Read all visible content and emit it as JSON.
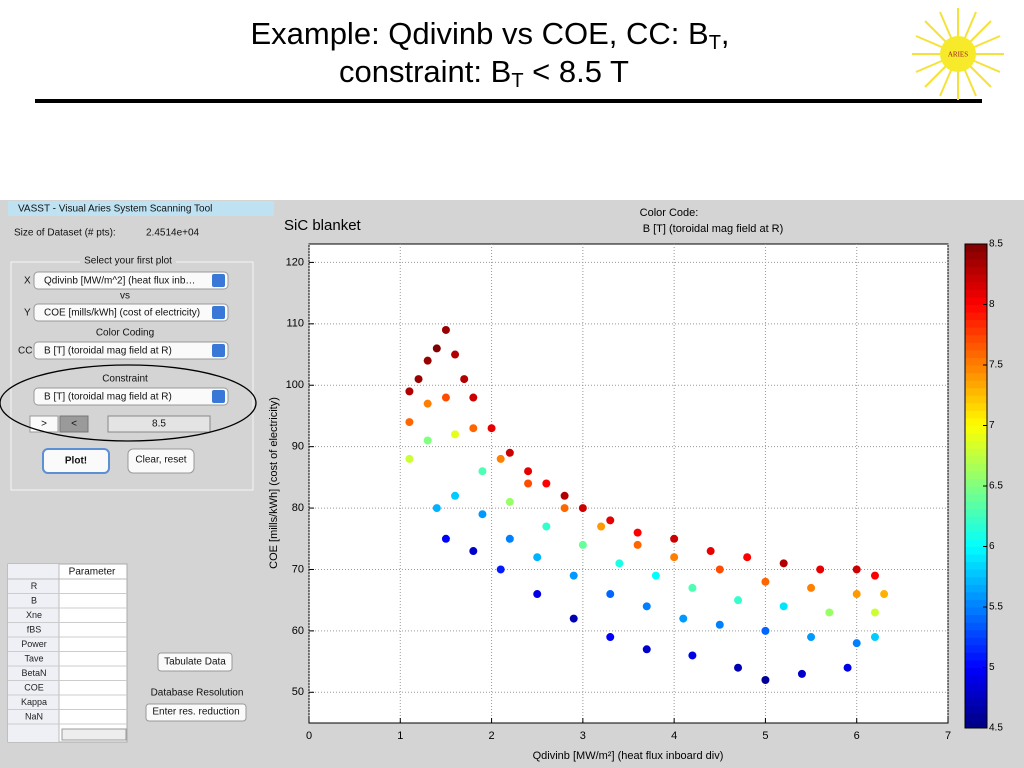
{
  "header": {
    "title_line1": [
      "Example: Qdivinb vs COE, CC: B",
      "T",
      ","
    ],
    "title_line2": [
      "constraint: B",
      "T",
      " < 8.5 T"
    ],
    "logo": "ARIES"
  },
  "app": {
    "window_title": "VASST - Visual Aries System Scanning Tool",
    "dataset_size_label": "Size of Dataset (# pts):",
    "dataset_size": "2.4514e+04",
    "plot_group": "Select your first plot",
    "x_label": "X",
    "x_choice": "Qdivinb [MW/m^2] (heat flux inb…",
    "vs": "vs",
    "y_label": "Y",
    "y_choice": "COE [mills/kWh] (cost of electricity)",
    "color_coding": "Color Coding",
    "cc_label": "CC",
    "cc_choice": "B [T] (toroidal mag field at R)",
    "constraint": "Constraint",
    "constraint_choice": "B [T] (toroidal mag field at R)",
    "gt": ">",
    "lt": "<",
    "constraint_value": "8.5",
    "plot_button": "Plot!",
    "clear_button": "Clear, reset",
    "table_header": "Parameter",
    "table_rows": [
      "R",
      "B",
      "Xne",
      "fBS",
      "Power",
      "Tave",
      "BetaN",
      "COE",
      "Kappa",
      "NaN"
    ],
    "tabulate_button": "Tabulate Data",
    "resolution_label": "Database Resolution",
    "resolution_button": "Enter res. reduction"
  },
  "chart_data": {
    "type": "scatter",
    "annotation": "SiC blanket",
    "colorbar_title": "Color Code:",
    "colorbar_label": "B [T] (toroidal mag field at R)",
    "xlabel": "Qdivinb [MW/m²] (heat flux inboard div)",
    "ylabel": "COE [mills/kWh] (cost of electricity)",
    "xlim": [
      0,
      7
    ],
    "xticks": [
      0,
      1,
      2,
      3,
      4,
      5,
      6,
      7
    ],
    "ylim": [
      45,
      123
    ],
    "yticks": [
      50,
      60,
      70,
      80,
      90,
      100,
      110,
      120
    ],
    "grid": true,
    "colormap": "jet",
    "clim": [
      4.5,
      8.5
    ],
    "cticks": [
      4.5,
      5,
      5.5,
      6,
      6.5,
      7,
      7.5,
      8,
      8.5
    ],
    "x": [
      1.1,
      1.2,
      1.3,
      1.4,
      1.5,
      1.6,
      1.7,
      1.8,
      2.0,
      2.2,
      2.4,
      2.6,
      2.8,
      3.0,
      3.3,
      3.6,
      4.0,
      4.4,
      4.8,
      5.2,
      5.6,
      6.0,
      6.2,
      1.1,
      1.3,
      1.5,
      1.8,
      2.1,
      2.4,
      2.8,
      3.2,
      3.6,
      4.0,
      4.5,
      5.0,
      5.5,
      6.0,
      6.3,
      1.1,
      1.3,
      1.6,
      1.9,
      2.2,
      2.6,
      3.0,
      3.4,
      3.8,
      4.2,
      4.7,
      5.2,
      5.7,
      6.2,
      1.4,
      1.6,
      1.9,
      2.2,
      2.5,
      2.9,
      3.3,
      3.7,
      4.1,
      4.5,
      5.0,
      5.5,
      6.0,
      6.2,
      1.5,
      1.8,
      2.1,
      2.5,
      2.9,
      3.3,
      3.7,
      4.2,
      4.7,
      5.0,
      5.4,
      5.9
    ],
    "y": [
      99,
      101,
      104,
      106,
      109,
      105,
      101,
      98,
      93,
      89,
      86,
      84,
      82,
      80,
      78,
      76,
      75,
      73,
      72,
      71,
      70,
      70,
      69,
      94,
      97,
      98,
      93,
      88,
      84,
      80,
      77,
      74,
      72,
      70,
      68,
      67,
      66,
      66,
      88,
      91,
      92,
      86,
      81,
      77,
      74,
      71,
      69,
      67,
      65,
      64,
      63,
      63,
      80,
      82,
      79,
      75,
      72,
      69,
      66,
      64,
      62,
      61,
      60,
      59,
      58,
      59,
      75,
      73,
      70,
      66,
      62,
      59,
      57,
      56,
      54,
      52,
      53,
      54
    ],
    "c": [
      8.3,
      8.4,
      8.4,
      8.5,
      8.4,
      8.3,
      8.3,
      8.2,
      8.1,
      8.2,
      8.1,
      8.0,
      8.3,
      8.2,
      8.1,
      8.0,
      8.2,
      8.1,
      8.0,
      8.3,
      8.1,
      8.2,
      8.0,
      7.6,
      7.5,
      7.7,
      7.6,
      7.5,
      7.7,
      7.6,
      7.4,
      7.6,
      7.5,
      7.7,
      7.6,
      7.5,
      7.4,
      7.3,
      6.8,
      6.5,
      6.9,
      6.3,
      6.6,
      6.2,
      6.4,
      6.1,
      6.0,
      6.3,
      6.2,
      5.9,
      6.6,
      6.8,
      5.7,
      5.8,
      5.6,
      5.5,
      5.7,
      5.6,
      5.4,
      5.5,
      5.6,
      5.5,
      5.4,
      5.6,
      5.5,
      5.8,
      5.0,
      4.8,
      5.1,
      4.9,
      4.7,
      5.0,
      4.8,
      4.9,
      4.7,
      4.6,
      4.8,
      4.9
    ]
  }
}
